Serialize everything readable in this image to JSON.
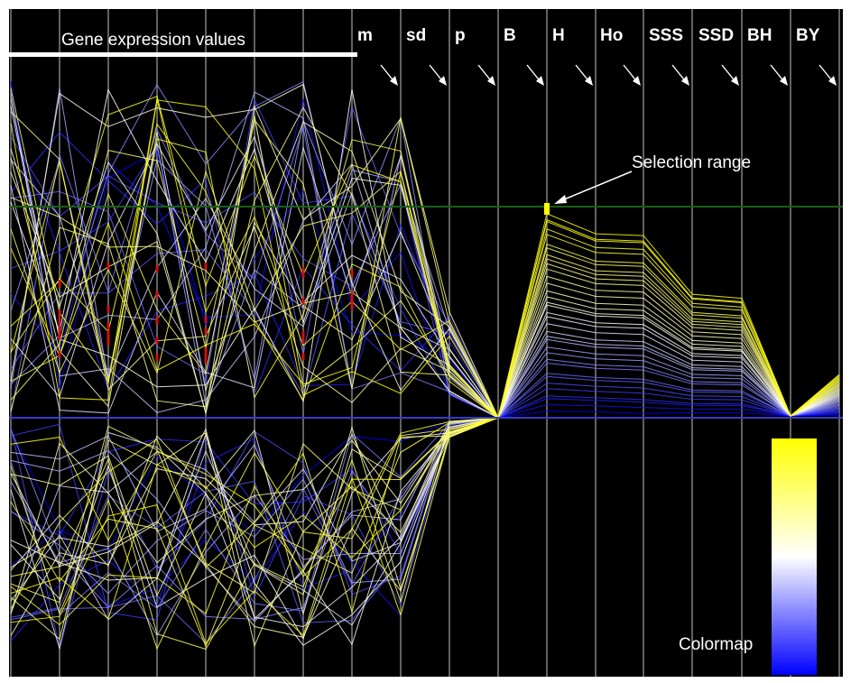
{
  "chart_data": {
    "type": "parallel-coordinates",
    "title": "Gene expression values",
    "axes": [
      "",
      "",
      "",
      "",
      "",
      "",
      "",
      "",
      "m",
      "sd",
      "p",
      "B",
      "H",
      "Ho",
      "SSS",
      "SSD",
      "BH",
      "BY"
    ],
    "axis_headers": [
      "m",
      "sd",
      "p",
      "B",
      "H",
      "Ho",
      "SSS",
      "SSD",
      "BH",
      "BY"
    ],
    "annotation": "Selection range",
    "legend_title": "Colormap",
    "colormap": [
      "#0000ff",
      "#ffffff",
      "#ffff00"
    ],
    "background": "#000000",
    "selection_line_color": "#1a5e1a",
    "zero_line_color": "#3a3acc",
    "grid": true,
    "lines_per_group": 35
  }
}
